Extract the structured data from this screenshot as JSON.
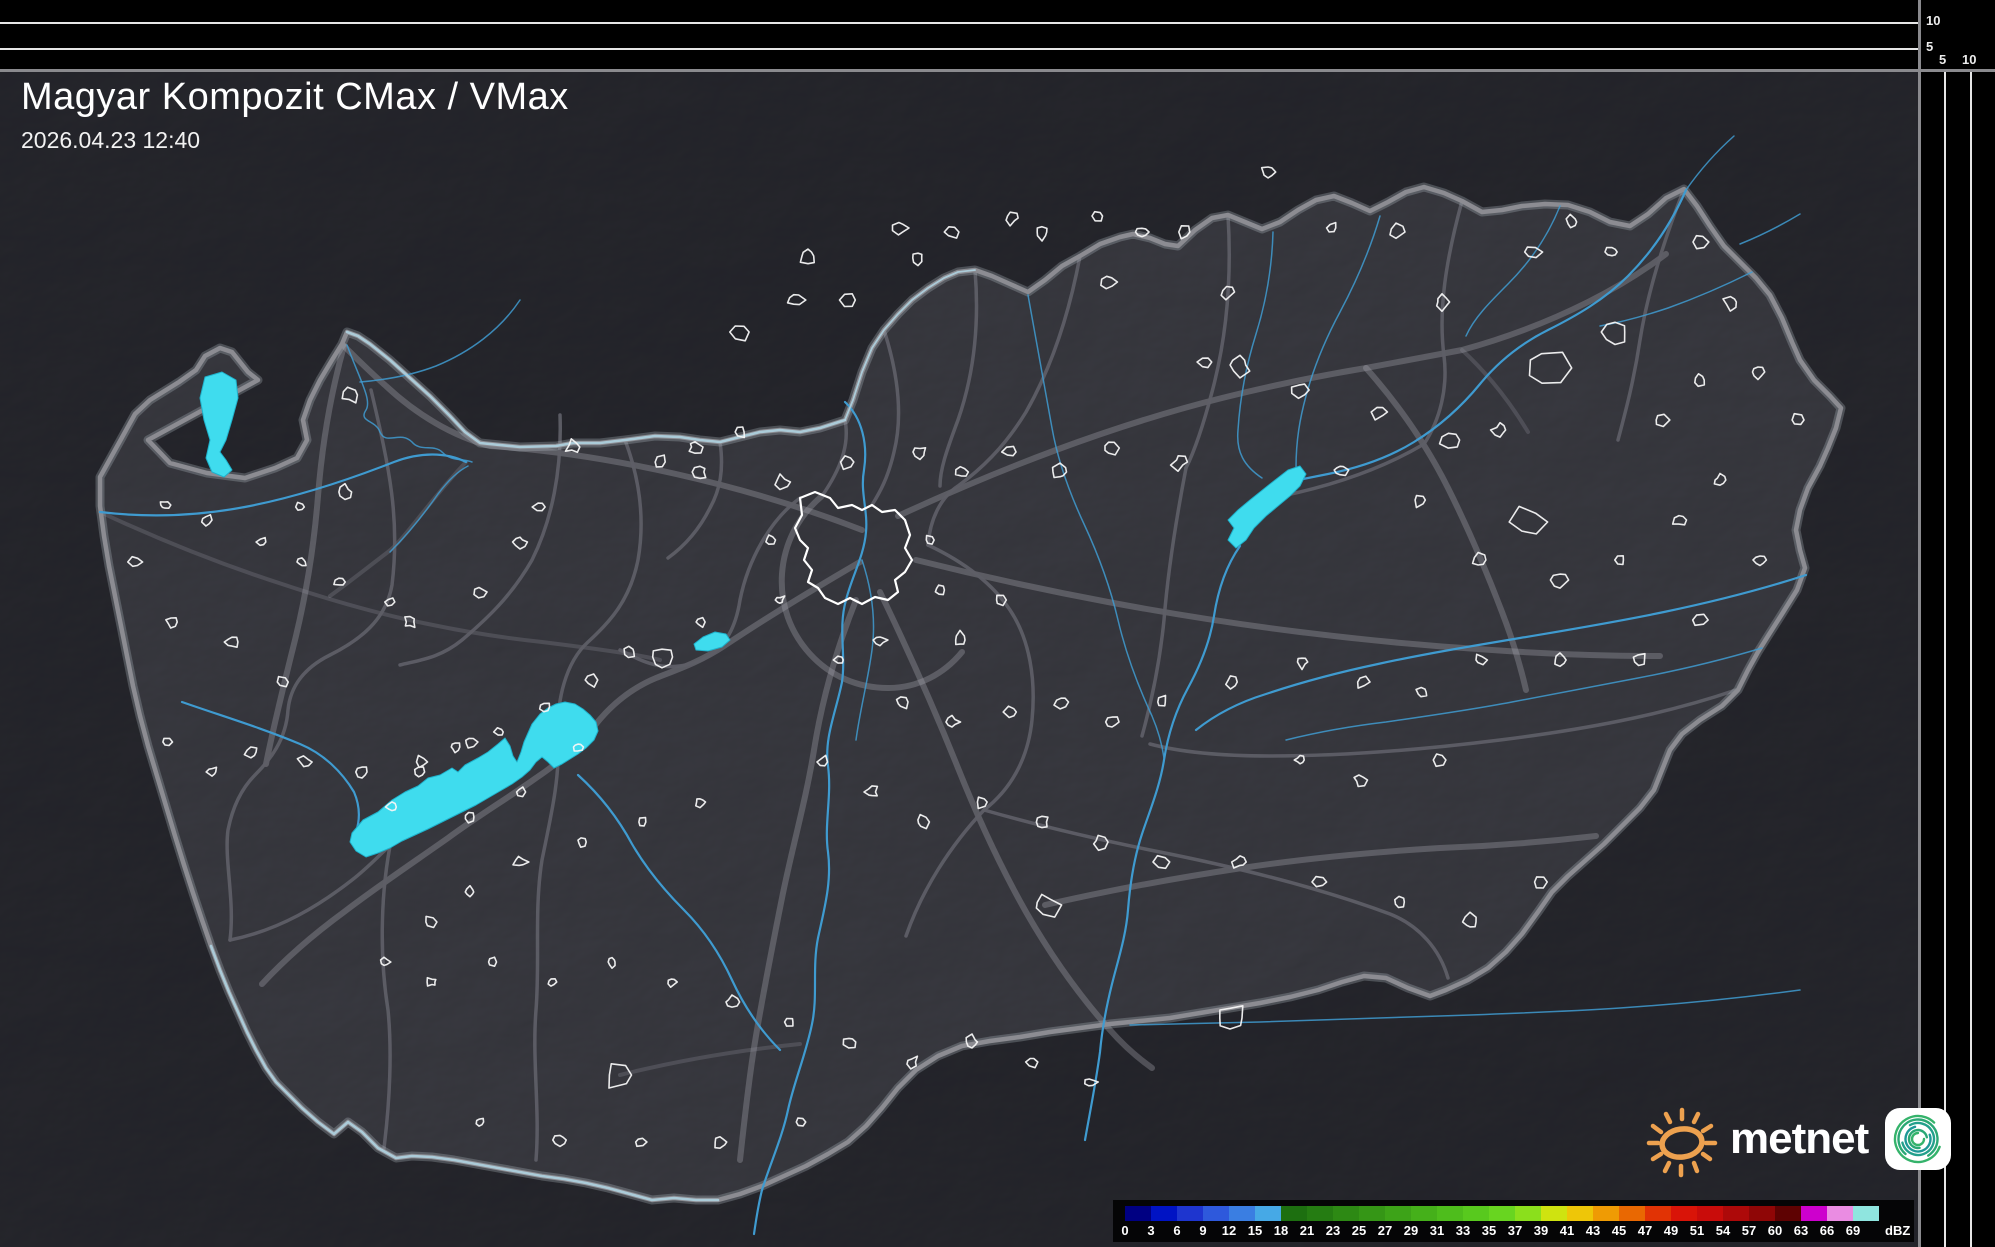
{
  "header": {
    "title": "Magyar Kompozit CMax / VMax",
    "datetime": "2026.04.23 12:40"
  },
  "cross_sections": {
    "top": [
      "10",
      "5"
    ],
    "right": [
      "5",
      "10"
    ]
  },
  "legend": {
    "unit": "dBZ",
    "ticks": [
      "0",
      "3",
      "6",
      "9",
      "12",
      "15",
      "18",
      "21",
      "23",
      "25",
      "27",
      "29",
      "31",
      "33",
      "35",
      "37",
      "39",
      "41",
      "43",
      "45",
      "47",
      "49",
      "51",
      "54",
      "57",
      "60",
      "63",
      "66",
      "69"
    ],
    "colors": [
      "#000082",
      "#0013c4",
      "#1e35cf",
      "#2e59dc",
      "#3a7ee2",
      "#46a9e6",
      "#1d6f10",
      "#257c12",
      "#2d8914",
      "#359616",
      "#3da318",
      "#45b01a",
      "#4ebd1c",
      "#58c91e",
      "#68d520",
      "#8bdf1c",
      "#cfe310",
      "#eec608",
      "#ef9b04",
      "#e96802",
      "#e13305",
      "#d91408",
      "#c90c0a",
      "#ad0909",
      "#8f0606",
      "#5e0202",
      "#cd00cd",
      "#ea8ce2",
      "#8fe5df"
    ]
  },
  "branding": {
    "wordmark": "metnet"
  }
}
